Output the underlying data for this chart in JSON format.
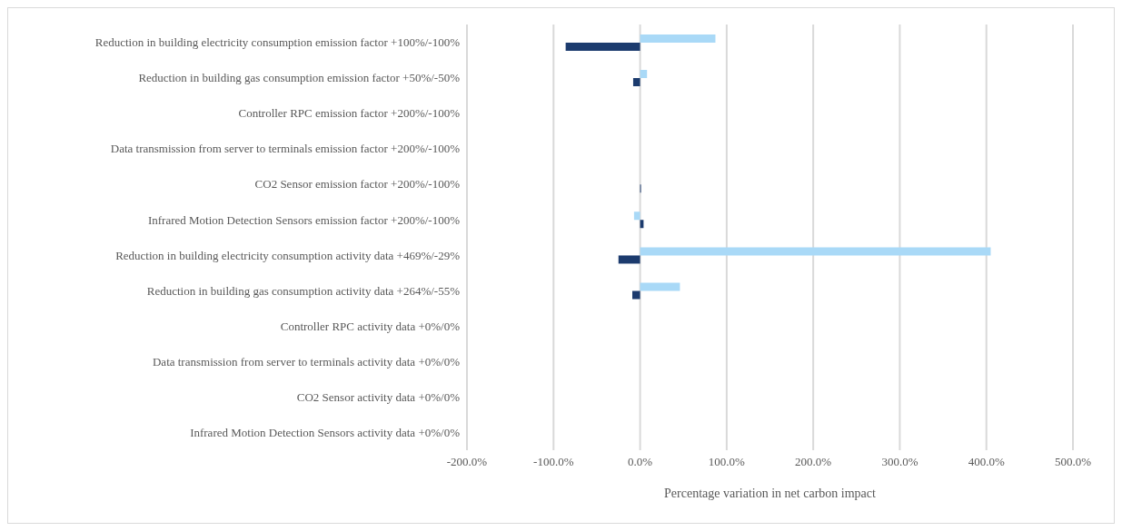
{
  "chart_data": {
    "type": "bar",
    "orientation": "horizontal",
    "xlabel": "Percentage variation in net carbon impact",
    "categories": [
      "Reduction in building electricity consumption emission factor +100%/-100%",
      "Reduction in building gas consumption emission factor +50%/-50%",
      "Controller RPC  emission factor +200%/-100%",
      "Data transmission from server to terminals emission factor +200%/-100%",
      "CO2 Sensor emission factor +200%/-100%",
      "Infrared Motion Detection Sensors emission factor +200%/-100%",
      "Reduction in building electricity consumption activity data +469%/-29%",
      "Reduction in building gas consumption activity data +264%/-55%",
      "Controller RPC  activity data +0%/0%",
      "Data transmission from server to terminals activity data +0%/0%",
      "CO2 Sensor activity data +0%/0%",
      "Infrared Motion Detection Sensors activity data +0%/0%"
    ],
    "series": [
      {
        "color": "#a9d9f7",
        "values": [
          87,
          8,
          0,
          0,
          null,
          -7,
          405,
          46,
          0,
          0,
          0,
          0
        ]
      },
      {
        "color": "#1c3b6e",
        "values": [
          -86,
          -8,
          0,
          0,
          1,
          4,
          -25,
          -9,
          0,
          0,
          0,
          0
        ]
      }
    ],
    "xlim": [
      -200,
      500
    ],
    "xticks": [
      {
        "value": -200,
        "label": "-200.0%"
      },
      {
        "value": -100,
        "label": "-100.0%"
      },
      {
        "value": 0,
        "label": "0.0%"
      },
      {
        "value": 100,
        "label": "100.0%"
      },
      {
        "value": 200,
        "label": "200.0%"
      },
      {
        "value": 300,
        "label": "300.0%"
      },
      {
        "value": 400,
        "label": "400.0%"
      },
      {
        "value": 500,
        "label": "500.0%"
      }
    ],
    "grid": "x",
    "legend": false
  }
}
